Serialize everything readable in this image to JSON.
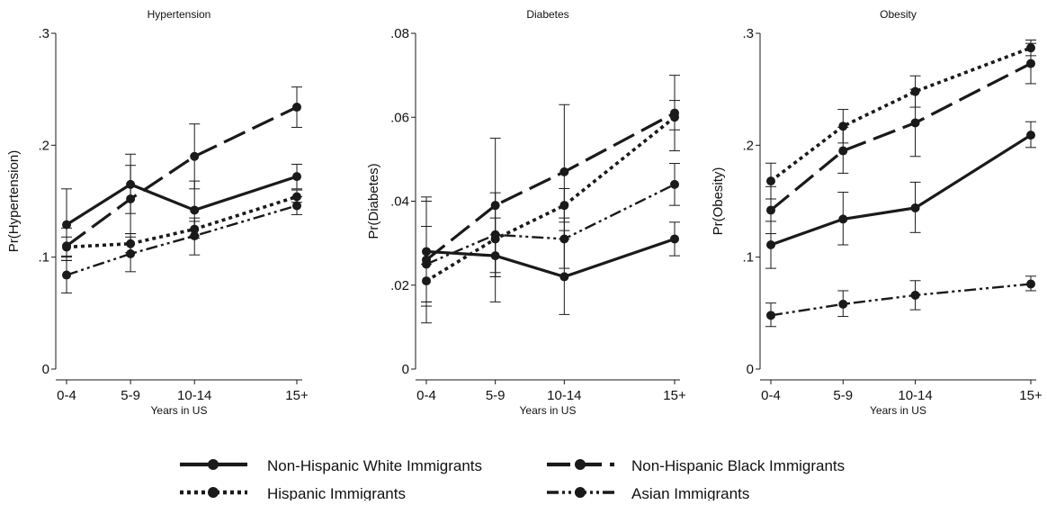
{
  "chart_data": [
    {
      "type": "line",
      "title": "Hypertension",
      "xlabel": "Years in US",
      "ylabel": "Pr(Hypertension)",
      "categories": [
        "0-4",
        "5-9",
        "10-14",
        "15+"
      ],
      "x": [
        2,
        7,
        12,
        20
      ],
      "xlim": [
        2,
        20
      ],
      "ylim": [
        0,
        0.3
      ],
      "yticks": [
        0,
        0.1,
        0.2,
        0.3
      ],
      "yticklabels": [
        "0",
        ".1",
        ".2",
        ".3"
      ],
      "grid": false,
      "series": [
        {
          "name": "Non-Hispanic White Immigrants",
          "values": [
            0.129,
            0.165,
            0.142,
            0.172
          ],
          "lower": [
            0.097,
            0.139,
            0.117,
            0.161
          ],
          "upper": [
            0.161,
            0.192,
            0.168,
            0.183
          ]
        },
        {
          "name": "Non-Hispanic Black Immigrants",
          "values": [
            0.11,
            0.152,
            0.19,
            0.234
          ],
          "lower": [
            0.097,
            0.121,
            0.161,
            0.216
          ],
          "upper": [
            0.126,
            0.182,
            0.219,
            0.252
          ]
        },
        {
          "name": "Hispanic Immigrants",
          "values": [
            0.109,
            0.112,
            0.125,
            0.154
          ],
          "lower": [
            0.101,
            0.104,
            0.119,
            0.149
          ],
          "upper": [
            0.118,
            0.121,
            0.132,
            0.16
          ]
        },
        {
          "name": "Asian Immigrants",
          "values": [
            0.084,
            0.103,
            0.119,
            0.146
          ],
          "lower": [
            0.068,
            0.087,
            0.102,
            0.138
          ],
          "upper": [
            0.1,
            0.118,
            0.135,
            0.154
          ]
        }
      ]
    },
    {
      "type": "line",
      "title": "Diabetes",
      "xlabel": "Years in US",
      "ylabel": "Pr(Diabetes)",
      "categories": [
        "0-4",
        "5-9",
        "10-14",
        "15+"
      ],
      "x": [
        2,
        7,
        12,
        20
      ],
      "xlim": [
        2,
        20
      ],
      "ylim": [
        0,
        0.08
      ],
      "yticks": [
        0,
        0.02,
        0.04,
        0.06,
        0.08
      ],
      "yticklabels": [
        "0",
        ".02",
        ".04",
        ".06",
        ".08"
      ],
      "grid": false,
      "series": [
        {
          "name": "Non-Hispanic White Immigrants",
          "values": [
            0.028,
            0.027,
            0.022,
            0.031
          ],
          "lower": [
            0.015,
            0.022,
            0.013,
            0.027
          ],
          "upper": [
            0.041,
            0.032,
            0.033,
            0.035
          ]
        },
        {
          "name": "Non-Hispanic Black Immigrants",
          "values": [
            0.026,
            0.039,
            0.047,
            0.061
          ],
          "lower": [
            0.016,
            0.016,
            0.031,
            0.052
          ],
          "upper": [
            0.034,
            0.055,
            0.063,
            0.07
          ]
        },
        {
          "name": "Hispanic Immigrants",
          "values": [
            0.021,
            0.031,
            0.039,
            0.06
          ],
          "lower": [
            0.016,
            0.023,
            0.035,
            0.057
          ],
          "upper": [
            0.025,
            0.036,
            0.043,
            0.064
          ]
        },
        {
          "name": "Asian Immigrants",
          "values": [
            0.025,
            0.032,
            0.031,
            0.044
          ],
          "lower": [
            0.011,
            0.022,
            0.024,
            0.039
          ],
          "upper": [
            0.04,
            0.042,
            0.036,
            0.049
          ]
        }
      ]
    },
    {
      "type": "line",
      "title": "Obesity",
      "xlabel": "Years in US",
      "ylabel": "Pr(Obesity)",
      "categories": [
        "0-4",
        "5-9",
        "10-14",
        "15+"
      ],
      "x": [
        2,
        7,
        12,
        20
      ],
      "xlim": [
        2,
        20
      ],
      "ylim": [
        0,
        0.3
      ],
      "yticks": [
        0,
        0.1,
        0.2,
        0.3
      ],
      "yticklabels": [
        "0",
        ".1",
        ".2",
        ".3"
      ],
      "grid": false,
      "series": [
        {
          "name": "Non-Hispanic White Immigrants",
          "values": [
            0.111,
            0.134,
            0.144,
            0.209
          ],
          "lower": [
            0.09,
            0.111,
            0.122,
            0.198
          ],
          "upper": [
            0.132,
            0.158,
            0.167,
            0.221
          ]
        },
        {
          "name": "Non-Hispanic Black Immigrants",
          "values": [
            0.142,
            0.195,
            0.22,
            0.273
          ],
          "lower": [
            0.121,
            0.175,
            0.19,
            0.255
          ],
          "upper": [
            0.163,
            0.216,
            0.25,
            0.291
          ]
        },
        {
          "name": "Hispanic Immigrants",
          "values": [
            0.168,
            0.217,
            0.248,
            0.287
          ],
          "lower": [
            0.152,
            0.202,
            0.234,
            0.28
          ],
          "upper": [
            0.184,
            0.232,
            0.262,
            0.294
          ]
        },
        {
          "name": "Asian Immigrants",
          "values": [
            0.048,
            0.058,
            0.066,
            0.076
          ],
          "lower": [
            0.038,
            0.047,
            0.053,
            0.07
          ],
          "upper": [
            0.059,
            0.07,
            0.079,
            0.083
          ]
        }
      ]
    }
  ],
  "legend": {
    "placement": "bottom",
    "items": [
      {
        "label": "Non-Hispanic White Immigrants",
        "style": "solid"
      },
      {
        "label": "Non-Hispanic Black Immigrants",
        "style": "longdash"
      },
      {
        "label": "Hispanic Immigrants",
        "style": "dotted"
      },
      {
        "label": "Asian Immigrants",
        "style": "dashdot"
      }
    ]
  },
  "colors": {
    "line": "#1a1a1a",
    "background": "#ffffff"
  }
}
